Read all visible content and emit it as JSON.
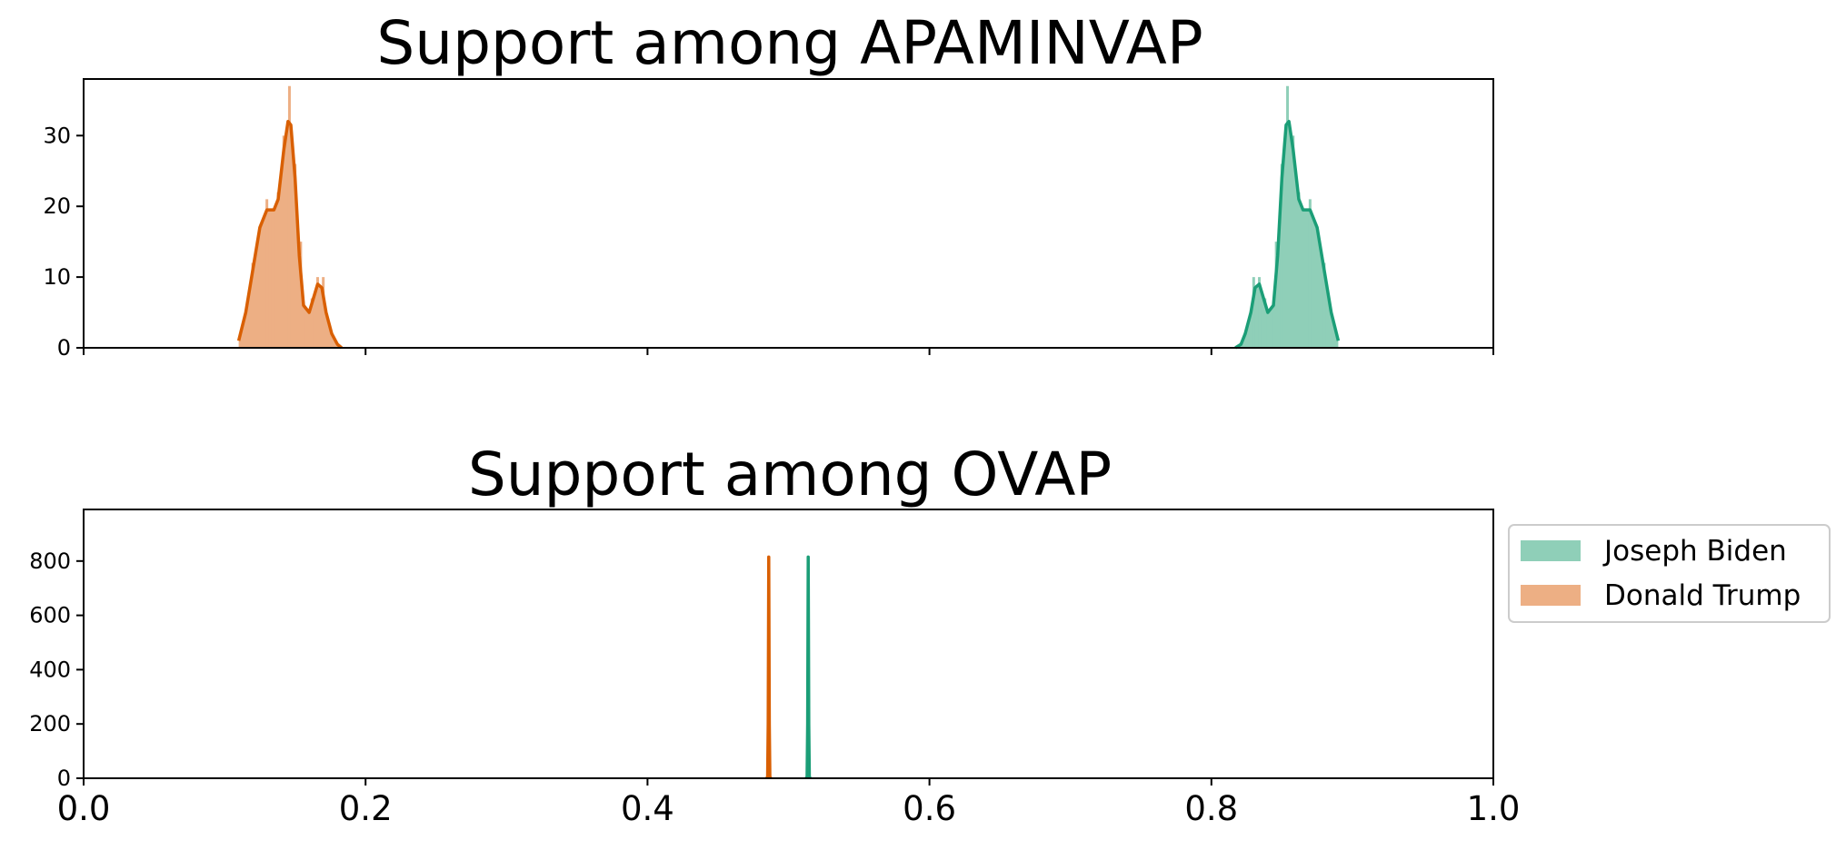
{
  "colors": {
    "biden_fill": "#8fcfb8",
    "biden_line": "#1b9e77",
    "trump_fill": "#edaf84",
    "trump_line": "#d95f02",
    "axis": "#000000"
  },
  "legend": {
    "placement": "right-of-bottom-panel",
    "entries": [
      {
        "label": "Joseph Biden",
        "color": "#8fcfb8"
      },
      {
        "label": "Donald Trump",
        "color": "#edaf84"
      }
    ]
  },
  "chart_data": [
    {
      "type": "area",
      "title": "Support among APAMINVAP",
      "xlabel": "",
      "ylabel": "",
      "xlim": [
        0.0,
        1.0
      ],
      "ylim": [
        0,
        38
      ],
      "xticks": [
        0.0,
        0.2,
        0.4,
        0.6,
        0.8,
        1.0
      ],
      "xtick_labels_visible": false,
      "yticks": [
        0,
        10,
        20,
        30
      ],
      "ytick_labels": [
        "0",
        "10",
        "20",
        "30"
      ],
      "grid": false,
      "series": [
        {
          "name": "Donald Trump",
          "color_key": "trump",
          "x": [
            0.11,
            0.115,
            0.12,
            0.125,
            0.13,
            0.135,
            0.138,
            0.142,
            0.145,
            0.147,
            0.15,
            0.153,
            0.156,
            0.16,
            0.163,
            0.166,
            0.169,
            0.172,
            0.176,
            0.18,
            0.183
          ],
          "y": [
            1,
            5,
            11,
            17,
            19.5,
            19.5,
            21,
            28,
            32,
            31.5,
            24,
            13,
            6,
            5,
            7,
            9,
            8.5,
            5,
            2,
            0.5,
            0
          ],
          "hist_x": [
            0.12,
            0.125,
            0.13,
            0.134,
            0.138,
            0.142,
            0.146,
            0.15,
            0.154,
            0.158,
            0.162,
            0.166,
            0.17
          ],
          "hist_y": [
            12,
            17,
            21,
            19,
            22,
            30,
            37,
            26,
            15,
            5,
            7,
            10,
            10
          ]
        },
        {
          "name": "Joseph Biden",
          "color_key": "biden",
          "x": [
            0.817,
            0.821,
            0.824,
            0.828,
            0.831,
            0.834,
            0.837,
            0.84,
            0.844,
            0.847,
            0.85,
            0.853,
            0.855,
            0.858,
            0.862,
            0.865,
            0.87,
            0.875,
            0.88,
            0.885,
            0.89
          ],
          "y": [
            0,
            0.5,
            2,
            5,
            8.5,
            9,
            7,
            5,
            6,
            13,
            24,
            31.5,
            32,
            28,
            21,
            19.5,
            19.5,
            17,
            11,
            5,
            1
          ],
          "hist_x": [
            0.83,
            0.834,
            0.838,
            0.842,
            0.846,
            0.85,
            0.854,
            0.858,
            0.862,
            0.866,
            0.87,
            0.875,
            0.88
          ],
          "hist_y": [
            10,
            10,
            7,
            5,
            15,
            26,
            37,
            30,
            22,
            19,
            21,
            17,
            12
          ]
        }
      ]
    },
    {
      "type": "area",
      "title": "Support among OVAP",
      "xlabel": "",
      "ylabel": "",
      "xlim": [
        0.0,
        1.0
      ],
      "ylim": [
        0,
        990
      ],
      "xticks": [
        0.0,
        0.2,
        0.4,
        0.6,
        0.8,
        1.0
      ],
      "xtick_labels": [
        "0.0",
        "0.2",
        "0.4",
        "0.6",
        "0.8",
        "1.0"
      ],
      "yticks": [
        0,
        200,
        400,
        600,
        800
      ],
      "ytick_labels": [
        "0",
        "200",
        "400",
        "600",
        "800"
      ],
      "grid": false,
      "series": [
        {
          "name": "Donald Trump",
          "color_key": "trump",
          "x": [
            0.4845,
            0.4852,
            0.4856,
            0.486,
            0.4864,
            0.4868,
            0.4875
          ],
          "y": [
            0,
            5,
            200,
            815,
            200,
            5,
            0
          ],
          "hist_x": [
            0.486
          ],
          "hist_y": [
            815
          ]
        },
        {
          "name": "Joseph Biden",
          "color_key": "biden",
          "x": [
            0.5125,
            0.5132,
            0.5136,
            0.514,
            0.5144,
            0.5148,
            0.5155
          ],
          "y": [
            0,
            5,
            200,
            815,
            200,
            5,
            0
          ],
          "hist_x": [
            0.514
          ],
          "hist_y": [
            815
          ]
        }
      ]
    }
  ]
}
